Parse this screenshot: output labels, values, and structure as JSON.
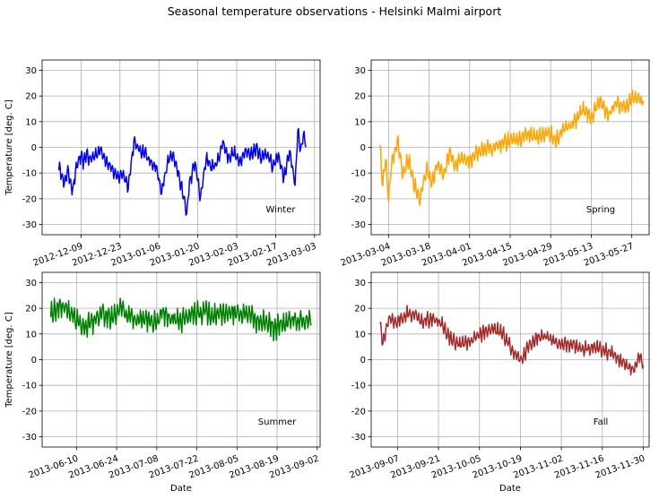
{
  "chart_data": {
    "title": "Seasonal temperature observations - Helsinki Malmi airport",
    "type": "line",
    "grid": true,
    "ylim": [
      -34,
      34
    ],
    "yticks": [
      -30,
      -20,
      -10,
      0,
      10,
      20,
      30
    ],
    "ylabel": "Temperature [deg. C]",
    "xlabel": "Date",
    "panels": [
      {
        "name": "winter",
        "label": "Winter",
        "color": "#0000ff",
        "xlim": [
          "2012-11-25",
          "2013-03-05"
        ],
        "xticks": [
          "2012-12-09",
          "2012-12-23",
          "2013-01-06",
          "2013-01-20",
          "2013-02-03",
          "2013-02-17",
          "2013-03-03"
        ],
        "anchors": [
          [
            "2012-12-01",
            -8
          ],
          [
            "2012-12-02",
            -10
          ],
          [
            "2012-12-03",
            -15
          ],
          [
            "2012-12-04",
            -9
          ],
          [
            "2012-12-05",
            -12
          ],
          [
            "2012-12-06",
            -17
          ],
          [
            "2012-12-07",
            -10
          ],
          [
            "2012-12-08",
            -5
          ],
          [
            "2012-12-09",
            -4
          ],
          [
            "2012-12-10",
            -6
          ],
          [
            "2012-12-11",
            -2
          ],
          [
            "2012-12-12",
            -5
          ],
          [
            "2012-12-14",
            -3
          ],
          [
            "2012-12-16",
            -1
          ],
          [
            "2012-12-18",
            -5
          ],
          [
            "2012-12-20",
            -8
          ],
          [
            "2012-12-22",
            -12
          ],
          [
            "2012-12-24",
            -10
          ],
          [
            "2012-12-26",
            -15
          ],
          [
            "2012-12-28",
            2
          ],
          [
            "2012-12-30",
            -1
          ],
          [
            "2013-01-01",
            -2
          ],
          [
            "2013-01-03",
            -6
          ],
          [
            "2013-01-05",
            -8
          ],
          [
            "2013-01-07",
            -18
          ],
          [
            "2013-01-09",
            -6
          ],
          [
            "2013-01-11",
            -2
          ],
          [
            "2013-01-13",
            -10
          ],
          [
            "2013-01-15",
            -20
          ],
          [
            "2013-01-16",
            -26
          ],
          [
            "2013-01-17",
            -14
          ],
          [
            "2013-01-19",
            -6
          ],
          [
            "2013-01-21",
            -20
          ],
          [
            "2013-01-23",
            -4
          ],
          [
            "2013-01-25",
            -8
          ],
          [
            "2013-01-27",
            -6
          ],
          [
            "2013-01-29",
            2
          ],
          [
            "2013-01-31",
            -4
          ],
          [
            "2013-02-02",
            -2
          ],
          [
            "2013-02-04",
            -6
          ],
          [
            "2013-02-06",
            -1
          ],
          [
            "2013-02-08",
            -3
          ],
          [
            "2013-02-10",
            0
          ],
          [
            "2013-02-12",
            -4
          ],
          [
            "2013-02-14",
            -2
          ],
          [
            "2013-02-16",
            -8
          ],
          [
            "2013-02-18",
            -3
          ],
          [
            "2013-02-20",
            -12
          ],
          [
            "2013-02-22",
            -2
          ],
          [
            "2013-02-24",
            -14
          ],
          [
            "2013-02-25",
            6
          ],
          [
            "2013-02-26",
            -1
          ],
          [
            "2013-02-27",
            5
          ],
          [
            "2013-02-28",
            1
          ]
        ],
        "noise": 2.6
      },
      {
        "name": "spring",
        "label": "Spring",
        "color": "#ffa500",
        "xlim": [
          "2013-02-26",
          "2013-06-02"
        ],
        "xticks": [
          "2013-03-04",
          "2013-03-18",
          "2013-04-01",
          "2013-04-15",
          "2013-04-29",
          "2013-05-13",
          "2013-05-27"
        ],
        "anchors": [
          [
            "2013-03-01",
            2
          ],
          [
            "2013-03-02",
            -15
          ],
          [
            "2013-03-03",
            -5
          ],
          [
            "2013-03-04",
            -20
          ],
          [
            "2013-03-05",
            -6
          ],
          [
            "2013-03-06",
            -3
          ],
          [
            "2013-03-07",
            3
          ],
          [
            "2013-03-09",
            -10
          ],
          [
            "2013-03-11",
            -4
          ],
          [
            "2013-03-13",
            -15
          ],
          [
            "2013-03-15",
            -20
          ],
          [
            "2013-03-17",
            -8
          ],
          [
            "2013-03-19",
            -14
          ],
          [
            "2013-03-21",
            -6
          ],
          [
            "2013-03-23",
            -12
          ],
          [
            "2013-03-25",
            -2
          ],
          [
            "2013-03-27",
            -8
          ],
          [
            "2013-03-29",
            -4
          ],
          [
            "2013-04-01",
            -5
          ],
          [
            "2013-04-04",
            -2
          ],
          [
            "2013-04-07",
            -1
          ],
          [
            "2013-04-10",
            1
          ],
          [
            "2013-04-13",
            2
          ],
          [
            "2013-04-16",
            3
          ],
          [
            "2013-04-19",
            4
          ],
          [
            "2013-04-22",
            5
          ],
          [
            "2013-04-25",
            4
          ],
          [
            "2013-04-28",
            6
          ],
          [
            "2013-05-01",
            3
          ],
          [
            "2013-05-04",
            8
          ],
          [
            "2013-05-07",
            9
          ],
          [
            "2013-05-10",
            15
          ],
          [
            "2013-05-13",
            12
          ],
          [
            "2013-05-16",
            18
          ],
          [
            "2013-05-19",
            13
          ],
          [
            "2013-05-22",
            17
          ],
          [
            "2013-05-25",
            15
          ],
          [
            "2013-05-28",
            20
          ],
          [
            "2013-05-31",
            18
          ]
        ],
        "noise": 3.2
      },
      {
        "name": "summer",
        "label": "Summer",
        "color": "#008000",
        "xlim": [
          "2013-05-29",
          "2013-09-03"
        ],
        "xticks": [
          "2013-06-10",
          "2013-06-24",
          "2013-07-08",
          "2013-07-22",
          "2013-08-05",
          "2013-08-19",
          "2013-09-02"
        ],
        "anchors": [
          [
            "2013-06-01",
            18
          ],
          [
            "2013-06-04",
            21
          ],
          [
            "2013-06-07",
            20
          ],
          [
            "2013-06-10",
            15
          ],
          [
            "2013-06-13",
            13
          ],
          [
            "2013-06-16",
            15
          ],
          [
            "2013-06-19",
            18
          ],
          [
            "2013-06-22",
            16
          ],
          [
            "2013-06-25",
            20
          ],
          [
            "2013-06-28",
            17
          ],
          [
            "2013-07-01",
            15
          ],
          [
            "2013-07-04",
            16
          ],
          [
            "2013-07-07",
            14
          ],
          [
            "2013-07-10",
            18
          ],
          [
            "2013-07-13",
            16
          ],
          [
            "2013-07-16",
            15
          ],
          [
            "2013-07-19",
            17
          ],
          [
            "2013-07-22",
            18
          ],
          [
            "2013-07-25",
            19
          ],
          [
            "2013-07-28",
            17
          ],
          [
            "2013-07-31",
            18
          ],
          [
            "2013-08-03",
            19
          ],
          [
            "2013-08-06",
            17
          ],
          [
            "2013-08-09",
            18
          ],
          [
            "2013-08-12",
            15
          ],
          [
            "2013-08-15",
            15
          ],
          [
            "2013-08-18",
            12
          ],
          [
            "2013-08-21",
            14
          ],
          [
            "2013-08-24",
            15
          ],
          [
            "2013-08-27",
            15
          ],
          [
            "2013-08-31",
            15
          ]
        ],
        "noise": 4.2
      },
      {
        "name": "fall",
        "label": "Fall",
        "color": "#a52a2a",
        "xlim": [
          "2013-08-29",
          "2013-12-02"
        ],
        "xticks": [
          "2013-09-07",
          "2013-09-21",
          "2013-10-05",
          "2013-10-19",
          "2013-11-02",
          "2013-11-16",
          "2013-11-30"
        ],
        "anchors": [
          [
            "2013-09-01",
            15
          ],
          [
            "2013-09-02",
            6
          ],
          [
            "2013-09-04",
            16
          ],
          [
            "2013-09-07",
            15
          ],
          [
            "2013-09-10",
            18
          ],
          [
            "2013-09-13",
            17
          ],
          [
            "2013-09-16",
            15
          ],
          [
            "2013-09-19",
            16
          ],
          [
            "2013-09-22",
            14
          ],
          [
            "2013-09-25",
            8
          ],
          [
            "2013-09-28",
            6
          ],
          [
            "2013-10-01",
            6
          ],
          [
            "2013-10-04",
            9
          ],
          [
            "2013-10-07",
            11
          ],
          [
            "2013-10-10",
            12
          ],
          [
            "2013-10-13",
            10
          ],
          [
            "2013-10-16",
            4
          ],
          [
            "2013-10-19",
            0
          ],
          [
            "2013-10-22",
            5
          ],
          [
            "2013-10-25",
            9
          ],
          [
            "2013-10-28",
            9
          ],
          [
            "2013-10-31",
            7
          ],
          [
            "2013-11-03",
            6
          ],
          [
            "2013-11-06",
            6
          ],
          [
            "2013-11-09",
            4
          ],
          [
            "2013-11-12",
            5
          ],
          [
            "2013-11-15",
            4
          ],
          [
            "2013-11-18",
            3
          ],
          [
            "2013-11-21",
            1
          ],
          [
            "2013-11-24",
            -2
          ],
          [
            "2013-11-27",
            -4
          ],
          [
            "2013-11-29",
            2
          ],
          [
            "2013-11-30",
            -2
          ]
        ],
        "noise": 2.8
      }
    ]
  }
}
